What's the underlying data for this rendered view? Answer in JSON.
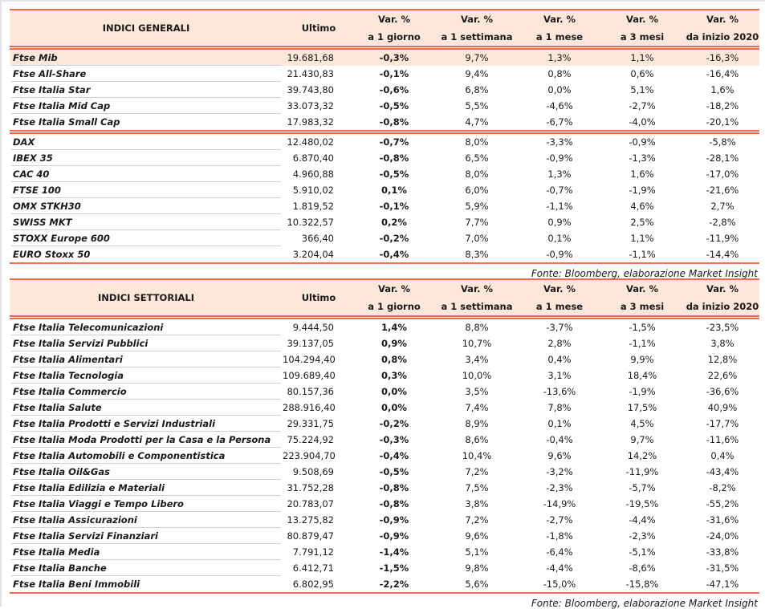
{
  "colors": {
    "accent": "#f26a50",
    "header_bg": "#fce7d8"
  },
  "columns": [
    "Ultimo",
    [
      "Var. %",
      "a 1 giorno"
    ],
    [
      "Var. %",
      "a 1 settimana"
    ],
    [
      "Var. %",
      "a 1 mese"
    ],
    [
      "Var. %",
      "a 3 mesi"
    ],
    [
      "Var. %",
      "da inizio 2020"
    ]
  ],
  "table1": {
    "title": "INDICI GENERALI",
    "group1": [
      [
        "Ftse Mib",
        "19.681,68",
        "-0,3%",
        "9,7%",
        "1,3%",
        "1,1%",
        "-16,3%"
      ],
      [
        "Ftse All-Share",
        "21.430,83",
        "-0,1%",
        "9,4%",
        "0,8%",
        "0,6%",
        "-16,4%"
      ],
      [
        "Ftse Italia Star",
        "39.743,80",
        "-0,6%",
        "6,8%",
        "0,0%",
        "5,1%",
        "1,6%"
      ],
      [
        "Ftse Italia Mid Cap",
        "33.073,32",
        "-0,5%",
        "5,5%",
        "-4,6%",
        "-2,7%",
        "-18,2%"
      ],
      [
        "Ftse Italia Small Cap",
        "17.983,32",
        "-0,8%",
        "4,7%",
        "-6,7%",
        "-4,0%",
        "-20,1%"
      ]
    ],
    "group2": [
      [
        "DAX",
        "12.480,02",
        "-0,7%",
        "8,0%",
        "-3,3%",
        "-0,9%",
        "-5,8%"
      ],
      [
        "IBEX 35",
        "6.870,40",
        "-0,8%",
        "6,5%",
        "-0,9%",
        "-1,3%",
        "-28,1%"
      ],
      [
        "CAC 40",
        "4.960,88",
        "-0,5%",
        "8,0%",
        "1,3%",
        "1,6%",
        "-17,0%"
      ],
      [
        "FTSE 100",
        "5.910,02",
        "0,1%",
        "6,0%",
        "-0,7%",
        "-1,9%",
        "-21,6%"
      ],
      [
        "OMX STKH30",
        "1.819,52",
        "-0,1%",
        "5,9%",
        "-1,1%",
        "4,6%",
        "2,7%"
      ],
      [
        "SWISS MKT",
        "10.322,57",
        "0,2%",
        "7,7%",
        "0,9%",
        "2,5%",
        "-2,8%"
      ],
      [
        "STOXX Europe 600",
        "366,40",
        "-0,2%",
        "7,0%",
        "0,1%",
        "1,1%",
        "-11,9%"
      ],
      [
        "EURO Stoxx 50",
        "3.204,04",
        "-0,4%",
        "8,3%",
        "-0,9%",
        "-1,1%",
        "-14,4%"
      ]
    ],
    "source": "Fonte: Bloomberg, elaborazione Market Insight"
  },
  "table2": {
    "title": "INDICI SETTORIALI",
    "rows": [
      [
        "Ftse Italia Telecomunicazioni",
        "9.444,50",
        "1,4%",
        "8,8%",
        "-3,7%",
        "-1,5%",
        "-23,5%"
      ],
      [
        "Ftse Italia Servizi Pubblici",
        "39.137,05",
        "0,9%",
        "10,7%",
        "2,8%",
        "-1,1%",
        "3,8%"
      ],
      [
        "Ftse Italia Alimentari",
        "104.294,40",
        "0,8%",
        "3,4%",
        "0,4%",
        "9,9%",
        "12,8%"
      ],
      [
        "Ftse Italia Tecnologia",
        "109.689,40",
        "0,3%",
        "10,0%",
        "3,1%",
        "18,4%",
        "22,6%"
      ],
      [
        "Ftse Italia Commercio",
        "80.157,36",
        "0,0%",
        "3,5%",
        "-13,6%",
        "-1,9%",
        "-36,6%"
      ],
      [
        "Ftse Italia Salute",
        "288.916,40",
        "0,0%",
        "7,4%",
        "7,8%",
        "17,5%",
        "40,9%"
      ],
      [
        "Ftse Italia Prodotti e Servizi Industriali",
        "29.331,75",
        "-0,2%",
        "8,9%",
        "0,1%",
        "4,5%",
        "-17,7%"
      ],
      [
        "Ftse Italia Moda Prodotti per la Casa e la Persona",
        "75.224,92",
        "-0,3%",
        "8,6%",
        "-0,4%",
        "9,7%",
        "-11,6%"
      ],
      [
        "Ftse Italia Automobili e Componentistica",
        "223.904,70",
        "-0,4%",
        "10,4%",
        "9,6%",
        "14,2%",
        "0,4%"
      ],
      [
        "Ftse Italia Oil&Gas",
        "9.508,69",
        "-0,5%",
        "7,2%",
        "-3,2%",
        "-11,9%",
        "-43,4%"
      ],
      [
        "Ftse Italia Edilizia e Materiali",
        "31.752,28",
        "-0,8%",
        "7,5%",
        "-2,3%",
        "-5,7%",
        "-8,2%"
      ],
      [
        "Ftse Italia Viaggi e Tempo Libero",
        "20.783,07",
        "-0,8%",
        "3,8%",
        "-14,9%",
        "-19,5%",
        "-55,2%"
      ],
      [
        "Ftse Italia Assicurazioni",
        "13.275,82",
        "-0,9%",
        "7,2%",
        "-2,7%",
        "-4,4%",
        "-31,6%"
      ],
      [
        "Ftse Italia Servizi Finanziari",
        "80.879,47",
        "-0,9%",
        "9,6%",
        "-1,8%",
        "-2,3%",
        "-24,0%"
      ],
      [
        "Ftse Italia Media",
        "7.791,12",
        "-1,4%",
        "5,1%",
        "-6,4%",
        "-5,1%",
        "-33,8%"
      ],
      [
        "Ftse Italia Banche",
        "6.412,71",
        "-1,5%",
        "9,8%",
        "-4,4%",
        "-8,6%",
        "-31,5%"
      ],
      [
        "Ftse Italia Beni Immobili",
        "6.802,95",
        "-2,2%",
        "5,6%",
        "-15,0%",
        "-15,8%",
        "-47,1%"
      ]
    ],
    "source": "Fonte: Bloomberg, elaborazione Market Insight"
  }
}
